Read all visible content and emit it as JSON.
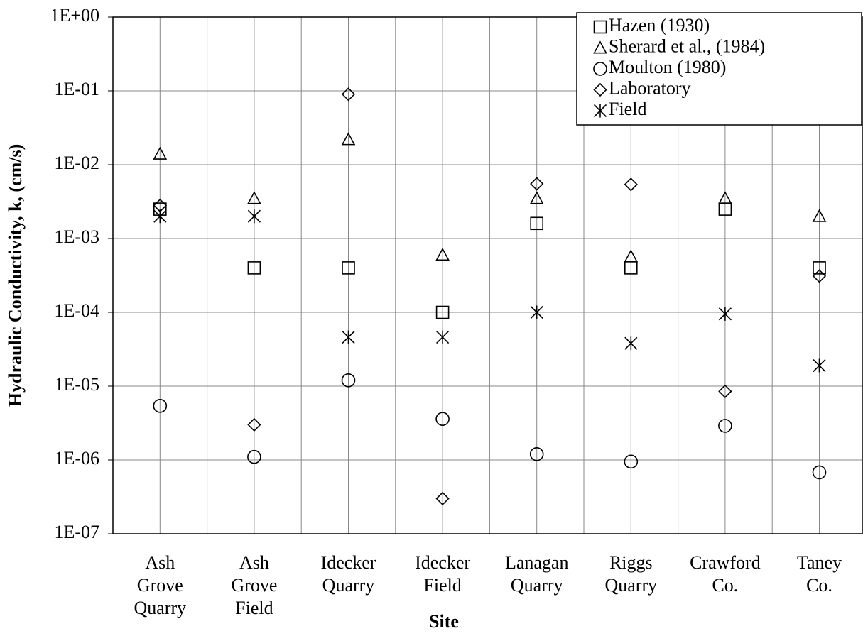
{
  "chart_data": {
    "type": "scatter",
    "y_label": "Hydraulic Conductivity, k, (cm/s)",
    "x_label": "Site",
    "categories": [
      "Ash Grove Quarry",
      "Ash Grove Field",
      "Idecker Quarry",
      "Idecker Field",
      "Lanagan Quarry",
      "Riggs Quarry",
      "Crawford Co.",
      "Taney Co."
    ],
    "series": [
      {
        "name": "Hazen (1930)",
        "marker": "square",
        "color": "#000000",
        "values": [
          0.0025,
          0.0004,
          0.0004,
          0.0001,
          0.0016,
          0.0004,
          0.0025,
          0.0004
        ]
      },
      {
        "name": "Sherard et al., (1984)",
        "marker": "triangle",
        "color": "#000000",
        "values": [
          0.014,
          0.0035,
          0.022,
          0.0006,
          0.0035,
          0.00057,
          0.0035,
          0.002
        ]
      },
      {
        "name": "Moulton (1980)",
        "marker": "circle",
        "color": "#000000",
        "values": [
          5.4e-06,
          1.1e-06,
          1.2e-05,
          3.6e-06,
          1.2e-06,
          9.5e-07,
          2.9e-06,
          6.8e-07
        ]
      },
      {
        "name": "Laboratory",
        "marker": "diamond",
        "color": "#000000",
        "values": [
          0.0028,
          3e-06,
          0.09,
          3e-07,
          0.0055,
          0.0054,
          8.5e-06,
          0.00031
        ]
      },
      {
        "name": "Field",
        "marker": "star",
        "color": "#000000",
        "values": [
          0.002,
          0.002,
          4.6e-05,
          4.6e-05,
          0.0001,
          3.8e-05,
          9.5e-05,
          1.9e-05
        ]
      }
    ],
    "log_y": true,
    "ylim": [
      1e-07,
      1
    ],
    "yticks": [
      {
        "value": 1,
        "label": "1E+00"
      },
      {
        "value": 0.1,
        "label": "1E-01"
      },
      {
        "value": 0.01,
        "label": "1E-02"
      },
      {
        "value": 0.001,
        "label": "1E-03"
      },
      {
        "value": 0.0001,
        "label": "1E-04"
      },
      {
        "value": 1e-05,
        "label": "1E-05"
      },
      {
        "value": 1e-06,
        "label": "1E-06"
      },
      {
        "value": 1e-07,
        "label": "1E-07"
      }
    ],
    "grid": true,
    "legend": "upper right"
  }
}
